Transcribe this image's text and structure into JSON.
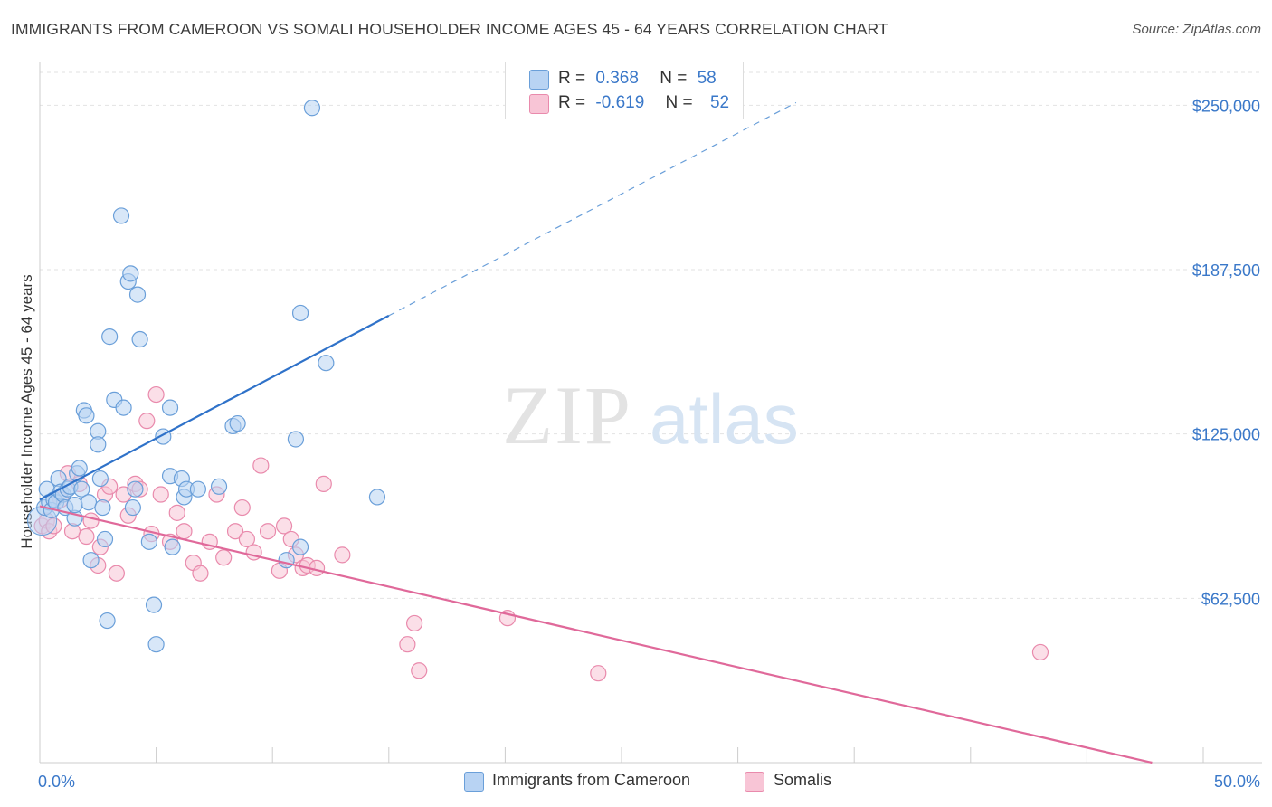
{
  "title": "IMMIGRANTS FROM CAMEROON VS SOMALI HOUSEHOLDER INCOME AGES 45 - 64 YEARS CORRELATION CHART",
  "source": "Source: ZipAtlas.com",
  "watermark": {
    "zip": "ZIP",
    "atlas": "atlas"
  },
  "colors": {
    "blue_fill": "#b8d3f3",
    "blue_stroke": "#6a9fd9",
    "blue_line": "#2f72c9",
    "pink_fill": "#f8c5d6",
    "pink_stroke": "#e98aac",
    "pink_line": "#e0699a",
    "axis_label_blue": "#3a78c9"
  },
  "legend": {
    "rows": [
      {
        "r_label": "R =",
        "r_value": "0.368",
        "n_label": "N =",
        "n_value": "58"
      },
      {
        "r_label": "R =",
        "r_value": "-0.619",
        "n_label": "N =",
        "n_value": "52"
      }
    ]
  },
  "bottom_legend": {
    "series1": "Immigrants from Cameroon",
    "series2": "Somalis"
  },
  "chart_data": {
    "type": "scatter",
    "title": "IMMIGRANTS FROM CAMEROON VS SOMALI HOUSEHOLDER INCOME AGES 45 - 64 YEARS CORRELATION CHART",
    "xlabel": "",
    "ylabel": "Householder Income Ages 45 - 64 years",
    "xlim": [
      0,
      50
    ],
    "ylim": [
      0,
      262500
    ],
    "x_tick_labels": [
      "0.0%",
      "50.0%"
    ],
    "y_ticks": [
      62500,
      125000,
      187500,
      250000
    ],
    "y_tick_labels": [
      "$62,500",
      "$125,000",
      "$187,500",
      "$250,000"
    ],
    "grid": true,
    "series": [
      {
        "name": "Immigrants from Cameroon",
        "R": 0.368,
        "N": 58,
        "trend": {
          "x0": 0,
          "y0": 100000,
          "x1": 15,
          "y1": 170000,
          "dashed_to_x": 32.5,
          "dashed_to_y": 251000
        },
        "points": [
          [
            0.2,
            97000
          ],
          [
            0.3,
            104000
          ],
          [
            0.4,
            99000
          ],
          [
            0.5,
            96000
          ],
          [
            0.6,
            100000
          ],
          [
            0.7,
            99000
          ],
          [
            0.8,
            108000
          ],
          [
            0.9,
            103000
          ],
          [
            1.0,
            102000
          ],
          [
            1.1,
            97000
          ],
          [
            1.2,
            104000
          ],
          [
            1.3,
            105000
          ],
          [
            1.5,
            93000
          ],
          [
            1.6,
            110000
          ],
          [
            1.7,
            112000
          ],
          [
            1.8,
            104000
          ],
          [
            1.5,
            98000
          ],
          [
            1.9,
            134000
          ],
          [
            2.0,
            132000
          ],
          [
            2.1,
            99000
          ],
          [
            2.2,
            77000
          ],
          [
            2.5,
            126000
          ],
          [
            2.5,
            121000
          ],
          [
            2.6,
            108000
          ],
          [
            2.7,
            97000
          ],
          [
            2.8,
            85000
          ],
          [
            2.9,
            54000
          ],
          [
            3.0,
            162000
          ],
          [
            3.2,
            138000
          ],
          [
            3.5,
            208000
          ],
          [
            3.6,
            135000
          ],
          [
            3.8,
            183000
          ],
          [
            3.9,
            186000
          ],
          [
            4.0,
            97000
          ],
          [
            4.1,
            104000
          ],
          [
            4.2,
            178000
          ],
          [
            4.3,
            161000
          ],
          [
            4.7,
            84000
          ],
          [
            5.0,
            45000
          ],
          [
            4.9,
            60000
          ],
          [
            5.3,
            124000
          ],
          [
            5.6,
            135000
          ],
          [
            5.6,
            109000
          ],
          [
            5.7,
            82000
          ],
          [
            6.1,
            108000
          ],
          [
            6.2,
            101000
          ],
          [
            6.3,
            104000
          ],
          [
            6.8,
            104000
          ],
          [
            7.7,
            105000
          ],
          [
            8.3,
            128000
          ],
          [
            8.5,
            129000
          ],
          [
            10.6,
            77000
          ],
          [
            11.0,
            123000
          ],
          [
            11.2,
            171000
          ],
          [
            11.2,
            82000
          ],
          [
            12.3,
            152000
          ],
          [
            14.5,
            101000
          ],
          [
            11.7,
            249000
          ]
        ]
      },
      {
        "name": "Somalis",
        "R": -0.619,
        "N": 52,
        "trend": {
          "x0": 0,
          "y0": 97500,
          "x1": 47.8,
          "y1": 0
        },
        "points": [
          [
            0.1,
            90000
          ],
          [
            0.3,
            92000
          ],
          [
            0.4,
            88000
          ],
          [
            0.6,
            90000
          ],
          [
            0.9,
            100000
          ],
          [
            1.2,
            110000
          ],
          [
            1.4,
            88000
          ],
          [
            1.7,
            106000
          ],
          [
            2.0,
            86000
          ],
          [
            2.2,
            92000
          ],
          [
            2.5,
            75000
          ],
          [
            2.6,
            82000
          ],
          [
            2.8,
            102000
          ],
          [
            3.0,
            105000
          ],
          [
            3.3,
            72000
          ],
          [
            3.6,
            102000
          ],
          [
            3.8,
            94000
          ],
          [
            4.1,
            106000
          ],
          [
            4.3,
            104000
          ],
          [
            4.6,
            130000
          ],
          [
            4.8,
            87000
          ],
          [
            5.0,
            140000
          ],
          [
            5.2,
            102000
          ],
          [
            5.6,
            84000
          ],
          [
            5.9,
            95000
          ],
          [
            6.2,
            88000
          ],
          [
            6.6,
            76000
          ],
          [
            6.9,
            72000
          ],
          [
            7.3,
            84000
          ],
          [
            7.6,
            102000
          ],
          [
            7.9,
            78000
          ],
          [
            8.4,
            88000
          ],
          [
            8.7,
            97000
          ],
          [
            8.9,
            85000
          ],
          [
            9.2,
            80000
          ],
          [
            9.5,
            113000
          ],
          [
            9.8,
            88000
          ],
          [
            10.3,
            73000
          ],
          [
            10.5,
            90000
          ],
          [
            10.8,
            85000
          ],
          [
            11.0,
            79000
          ],
          [
            11.3,
            74000
          ],
          [
            11.5,
            75000
          ],
          [
            11.9,
            74000
          ],
          [
            12.2,
            106000
          ],
          [
            13.0,
            79000
          ],
          [
            15.8,
            45000
          ],
          [
            16.1,
            53000
          ],
          [
            16.3,
            35000
          ],
          [
            20.1,
            55000
          ],
          [
            24.0,
            34000
          ],
          [
            43.0,
            42000
          ]
        ]
      }
    ]
  }
}
